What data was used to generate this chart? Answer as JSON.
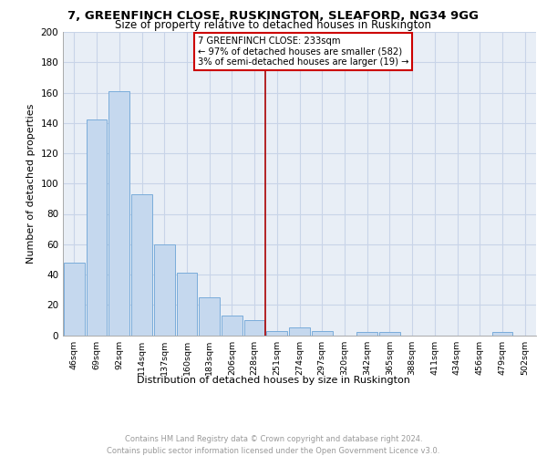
{
  "title": "7, GREENFINCH CLOSE, RUSKINGTON, SLEAFORD, NG34 9GG",
  "subtitle": "Size of property relative to detached houses in Ruskington",
  "xlabel": "Distribution of detached houses by size in Ruskington",
  "ylabel": "Number of detached properties",
  "categories": [
    "46sqm",
    "69sqm",
    "92sqm",
    "114sqm",
    "137sqm",
    "160sqm",
    "183sqm",
    "206sqm",
    "228sqm",
    "251sqm",
    "274sqm",
    "297sqm",
    "320sqm",
    "342sqm",
    "365sqm",
    "388sqm",
    "411sqm",
    "434sqm",
    "456sqm",
    "479sqm",
    "502sqm"
  ],
  "values": [
    48,
    142,
    161,
    93,
    60,
    41,
    25,
    13,
    10,
    3,
    5,
    3,
    0,
    2,
    2,
    0,
    0,
    0,
    0,
    2,
    0
  ],
  "bar_color": "#c5d8ee",
  "bar_edge_color": "#7aacda",
  "vline_x": 8.5,
  "vline_color": "#aa0000",
  "annotation_lines": [
    "7 GREENFINCH CLOSE: 233sqm",
    "← 97% of detached houses are smaller (582)",
    "3% of semi-detached houses are larger (19) →"
  ],
  "annotation_box_color": "#cc0000",
  "ylim": [
    0,
    200
  ],
  "yticks": [
    0,
    20,
    40,
    60,
    80,
    100,
    120,
    140,
    160,
    180,
    200
  ],
  "grid_color": "#c8d4e8",
  "bg_color": "#e8eef6",
  "footer": "Contains HM Land Registry data © Crown copyright and database right 2024.\nContains public sector information licensed under the Open Government Licence v3.0."
}
